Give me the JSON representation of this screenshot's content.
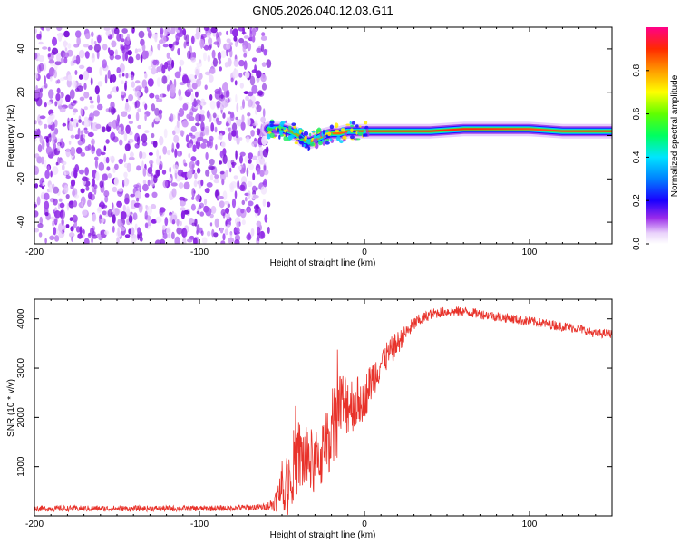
{
  "figure": {
    "title": "GN05.2026.040.12.03.G11"
  },
  "colors": {
    "snr_line": "#e8322a",
    "axis": "#000000",
    "background": "#ffffff"
  },
  "chart_data": [
    {
      "type": "heatmap",
      "title": "GN05.2026.040.12.03.G11",
      "xlabel": "Height of straight line (km)",
      "ylabel": "Frequency (Hz)",
      "xlim": [
        -200,
        150
      ],
      "ylim": [
        -50,
        50
      ],
      "xticks": [
        -200,
        -100,
        0,
        100
      ],
      "xtick_labels": [
        "-200",
        "-100",
        "0",
        "100"
      ],
      "yticks": [
        -40,
        -20,
        0,
        20,
        40
      ],
      "ytick_labels": [
        "-40",
        "-20",
        "0",
        "20",
        "40"
      ],
      "noise_region_x": [
        -200,
        -58
      ],
      "signal_center_track": {
        "x": [
          -58,
          -50,
          -45,
          -40,
          -37,
          -34,
          -30,
          -25,
          -20,
          -15,
          -10,
          -5,
          0,
          5,
          10,
          20,
          40,
          60,
          80,
          100,
          120,
          150
        ],
        "y": [
          3,
          3,
          2,
          0,
          -2,
          -3,
          -2,
          0,
          1,
          1,
          2,
          2,
          2,
          2,
          2,
          2,
          2,
          3,
          3,
          3,
          2,
          2
        ]
      },
      "colorbar": {
        "label": "Normalized spectral amplitude",
        "range": [
          0,
          1
        ],
        "ticks": [
          0.0,
          0.2,
          0.4,
          0.6,
          0.8
        ],
        "tick_labels": [
          "0.0",
          "0.2",
          "0.4",
          "0.6",
          "0.8"
        ]
      }
    },
    {
      "type": "line",
      "xlabel": "Height of straight line (km)",
      "ylabel": "SNR (10 * v/v)",
      "xlim": [
        -200,
        150
      ],
      "ylim": [
        0,
        4400
      ],
      "xticks": [
        -200,
        -100,
        0,
        100
      ],
      "xtick_labels": [
        "-200",
        "-100",
        "0",
        "100"
      ],
      "yticks": [
        1000,
        2000,
        3000,
        4000
      ],
      "ytick_labels": [
        "1000",
        "2000",
        "3000",
        "4000"
      ],
      "series": [
        {
          "name": "SNR",
          "x": [
            -200,
            -180,
            -160,
            -140,
            -120,
            -100,
            -80,
            -60,
            -55,
            -50,
            -45,
            -40,
            -35,
            -30,
            -25,
            -20,
            -15,
            -10,
            -5,
            0,
            5,
            10,
            15,
            20,
            25,
            30,
            35,
            40,
            50,
            60,
            70,
            80,
            90,
            100,
            110,
            120,
            130,
            140,
            150
          ],
          "y": [
            150,
            150,
            150,
            150,
            150,
            150,
            160,
            180,
            250,
            500,
            900,
            1200,
            1150,
            1050,
            1300,
            1800,
            2200,
            2300,
            2300,
            2400,
            2800,
            3100,
            3300,
            3500,
            3700,
            3900,
            4000,
            4100,
            4150,
            4150,
            4100,
            4050,
            4000,
            3950,
            3900,
            3850,
            3800,
            3700,
            3700
          ],
          "noise_amplitude": [
            60,
            60,
            60,
            60,
            60,
            60,
            60,
            70,
            150,
            450,
            700,
            800,
            750,
            650,
            700,
            800,
            800,
            650,
            550,
            450,
            400,
            350,
            300,
            250,
            180,
            150,
            120,
            110,
            100,
            100,
            100,
            100,
            100,
            100,
            100,
            100,
            90,
            90,
            90
          ]
        }
      ]
    }
  ]
}
